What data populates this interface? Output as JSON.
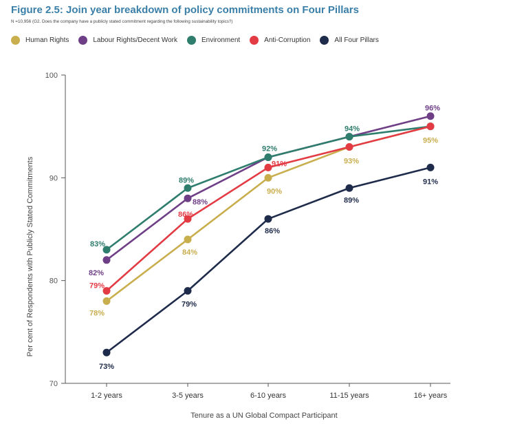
{
  "header": {
    "title": "Figure 2.5: Join year breakdown of policy commitments on Four Pillars",
    "subtitle": "N =10,956 (G2. Does the company have a publicly stated commitment regarding the following sustainability topics?)"
  },
  "chart_data": {
    "type": "line",
    "title": "Figure 2.5: Join year breakdown of policy commitments on Four Pillars",
    "xlabel": "Tenure as a UN Global Compact Participant",
    "ylabel": "Per cent of Respondents with Publicly Stated Commitments",
    "ylim": [
      70,
      100
    ],
    "yticks": [
      70,
      80,
      90,
      100
    ],
    "categories": [
      "1-2 years",
      "3-5 years",
      "6-10 years",
      "11-15 years",
      "16+ years"
    ],
    "legend_position": "top",
    "grid": false,
    "series": [
      {
        "name": "Human Rights",
        "color": "#c9ae4e",
        "values": [
          78,
          84,
          90,
          93,
          95
        ],
        "labels": [
          "78%",
          "84%",
          "90%",
          "93%",
          "95%"
        ]
      },
      {
        "name": "Labour Rights/Decent Work",
        "color": "#6e3f86",
        "values": [
          82,
          88,
          92,
          94,
          96
        ],
        "labels": [
          "82%",
          "88%",
          "",
          "",
          "96%"
        ]
      },
      {
        "name": "Environment",
        "color": "#2e7d6d",
        "values": [
          83,
          89,
          92,
          94,
          95
        ],
        "labels": [
          "83%",
          "89%",
          "92%",
          "94%",
          ""
        ]
      },
      {
        "name": "Anti-Corruption",
        "color": "#e23b44",
        "values": [
          79,
          86,
          91,
          93,
          95
        ],
        "labels": [
          "79%",
          "86%",
          "91%",
          "",
          ""
        ]
      },
      {
        "name": "All Four Pillars",
        "color": "#1f2b4a",
        "values": [
          73,
          79,
          86,
          89,
          91
        ],
        "labels": [
          "73%",
          "79%",
          "86%",
          "89%",
          "91%"
        ]
      }
    ]
  }
}
